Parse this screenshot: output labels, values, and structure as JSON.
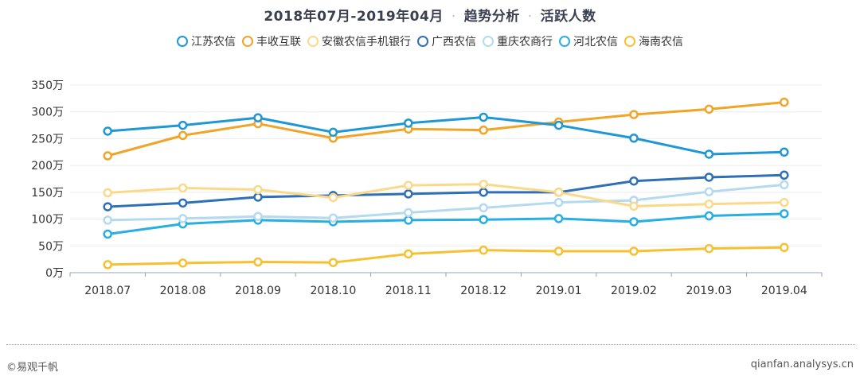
{
  "title": {
    "period": "2018年07月-2019年04月",
    "section": "趋势分析",
    "metric": "活跃人数",
    "separator": "·"
  },
  "footer": {
    "copyright": "©易观千帆",
    "site": "qianfan.analysys.cn"
  },
  "chart_data": {
    "type": "line",
    "categories": [
      "2018.07",
      "2018.08",
      "2018.09",
      "2018.10",
      "2018.11",
      "2018.12",
      "2019.01",
      "2019.02",
      "2019.03",
      "2019.04"
    ],
    "y_ticks": [
      "0万",
      "50万",
      "100万",
      "150万",
      "200万",
      "250万",
      "300万",
      "350万"
    ],
    "ylim": [
      0,
      350
    ],
    "y_unit": "万",
    "grid": true,
    "legend_position": "top-center",
    "series": [
      {
        "name": "江苏农信",
        "color": "#1f97d4",
        "values": [
          264,
          275,
          289,
          262,
          279,
          290,
          275,
          251,
          221,
          225
        ]
      },
      {
        "name": "丰收互联",
        "color": "#f0a428",
        "values": [
          218,
          256,
          278,
          251,
          268,
          266,
          281,
          295,
          305,
          318
        ]
      },
      {
        "name": "安徽农信手机银行",
        "color": "#fbd98a",
        "values": [
          149,
          158,
          155,
          140,
          163,
          165,
          150,
          124,
          128,
          131
        ]
      },
      {
        "name": "广西农信",
        "color": "#2e6fb8",
        "values": [
          123,
          130,
          141,
          144,
          147,
          150,
          150,
          171,
          178,
          182
        ]
      },
      {
        "name": "重庆农商行",
        "color": "#b5d9ef",
        "values": [
          98,
          101,
          105,
          102,
          112,
          121,
          131,
          135,
          151,
          164
        ]
      },
      {
        "name": "河北农信",
        "color": "#27aee3",
        "values": [
          72,
          91,
          98,
          95,
          98,
          99,
          101,
          95,
          106,
          110
        ]
      },
      {
        "name": "海南农信",
        "color": "#f6c131",
        "values": [
          15,
          18,
          20,
          19,
          35,
          42,
          40,
          40,
          45,
          47
        ]
      }
    ]
  }
}
